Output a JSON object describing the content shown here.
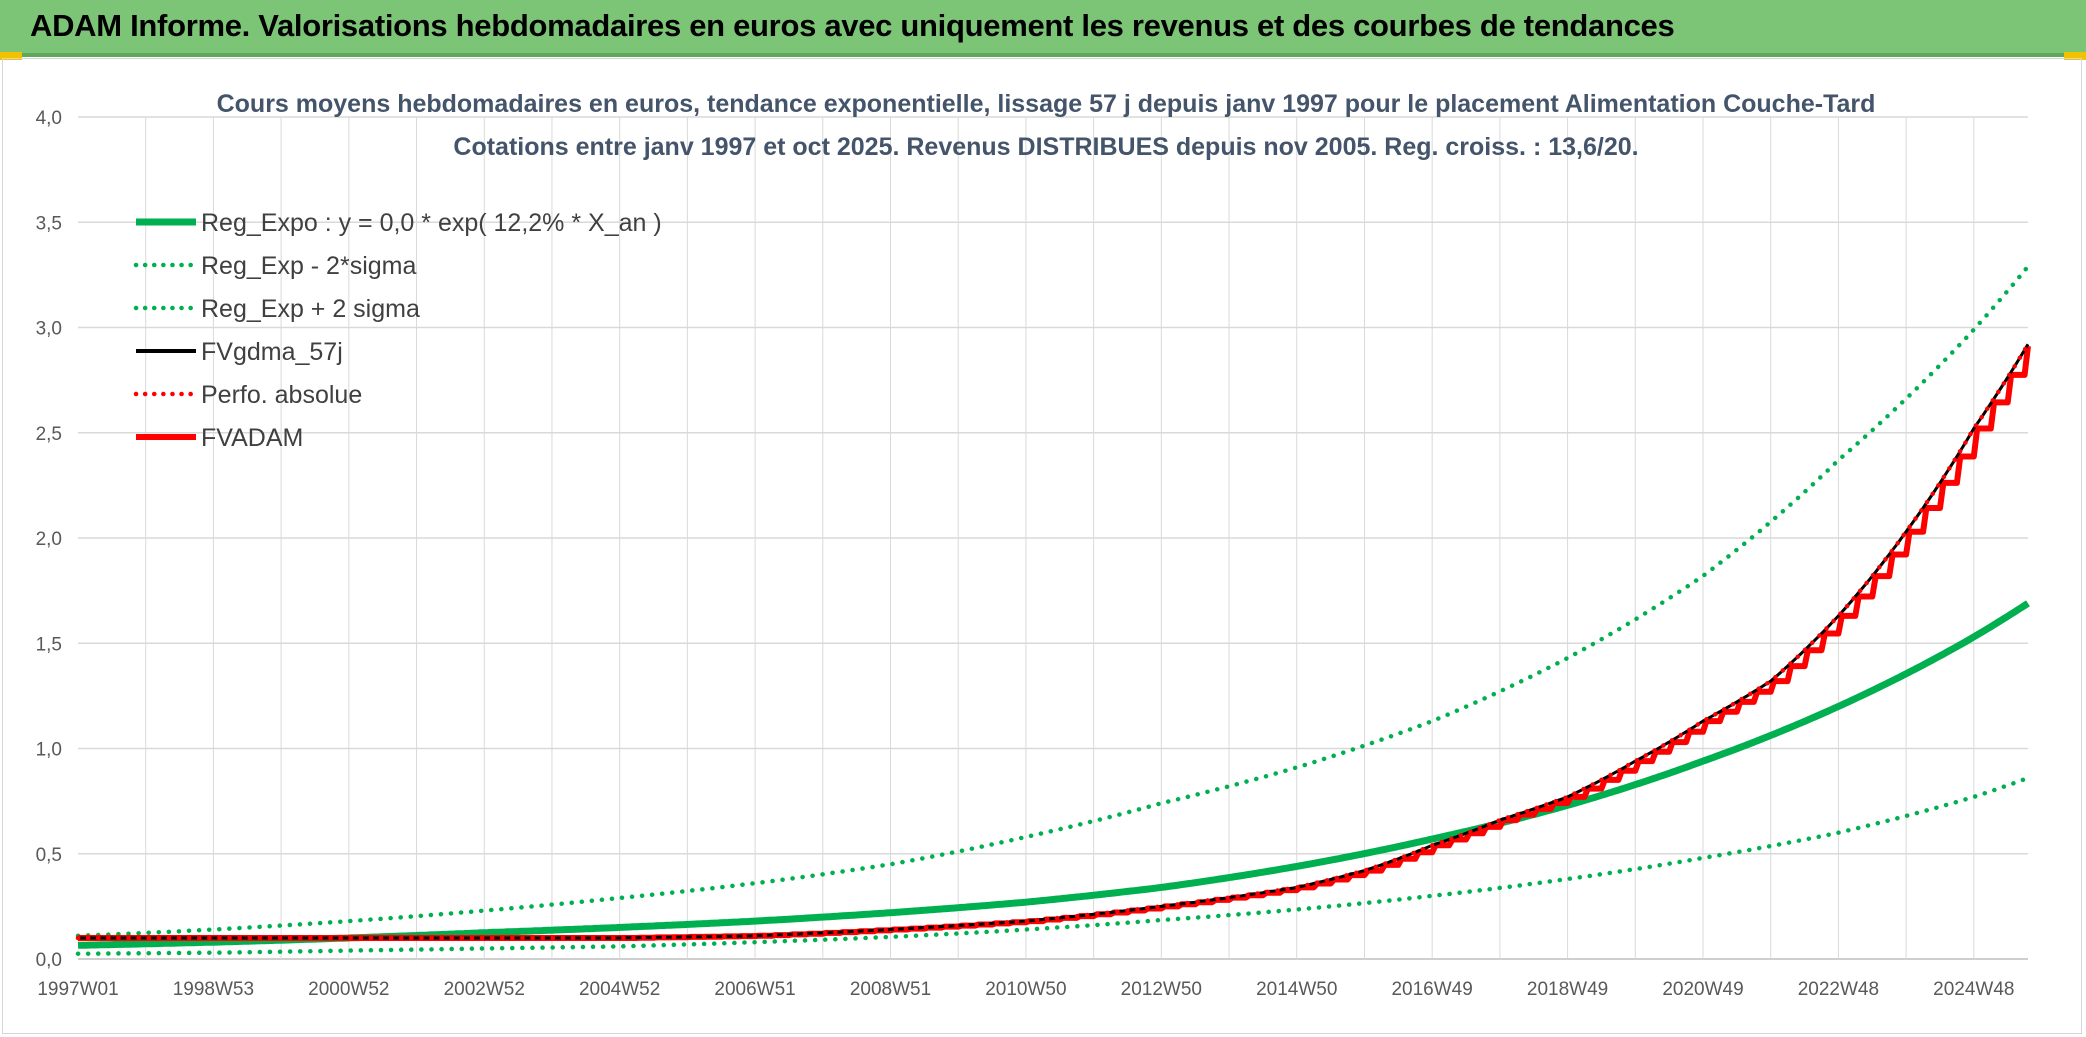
{
  "banner": {
    "title": "ADAM Informe. Valorisations hebdomadaires en euros avec uniquement les revenus et des courbes de tendances"
  },
  "colors": {
    "banner_bg": "#7cc576",
    "accent_corner": "#f2c200",
    "green_series": "#00b050",
    "red_series": "#ff0000",
    "black_series": "#000000",
    "grid": "#d9d9d9",
    "title_text": "#44546a"
  },
  "chart_data": {
    "type": "line",
    "title": "Cours moyens hebdomadaires en euros, tendance exponentielle, lissage 57 j depuis janv 1997 pour le placement Alimentation Couche-Tard",
    "subtitle": "Cotations entre janv 1997 et oct 2025. Revenus DISTRIBUES depuis nov 2005. Reg. croiss. : 13,6/20.",
    "xlabel": "",
    "ylabel": "",
    "ylim": [
      0,
      4
    ],
    "xlim": [
      1997.0,
      2025.8
    ],
    "y_ticks": [
      "0,0",
      "0,5",
      "1,0",
      "1,5",
      "2,0",
      "2,5",
      "3,0",
      "3,5",
      "4,0"
    ],
    "x_ticks": [
      {
        "label": "1997W01",
        "x": 1997.0
      },
      {
        "label": "1998W53",
        "x": 1999.0
      },
      {
        "label": "2000W52",
        "x": 2001.0
      },
      {
        "label": "2002W52",
        "x": 2003.0
      },
      {
        "label": "2004W52",
        "x": 2005.0
      },
      {
        "label": "2006W51",
        "x": 2007.0
      },
      {
        "label": "2008W51",
        "x": 2009.0
      },
      {
        "label": "2010W50",
        "x": 2011.0
      },
      {
        "label": "2012W50",
        "x": 2013.0
      },
      {
        "label": "2014W50",
        "x": 2015.0
      },
      {
        "label": "2016W49",
        "x": 2017.0
      },
      {
        "label": "2018W49",
        "x": 2019.0
      },
      {
        "label": "2020W49",
        "x": 2021.0
      },
      {
        "label": "2022W48",
        "x": 2023.0
      },
      {
        "label": "2024W48",
        "x": 2025.0
      }
    ],
    "legend_position": "top-left",
    "grid": true,
    "series": [
      {
        "name": "Reg_Expo : y = 0,0 * exp( 12,2% *  X_an )",
        "style": "solid-thick",
        "color": "#00b050",
        "x": [
          1997,
          1999,
          2001,
          2003,
          2005,
          2007,
          2009,
          2011,
          2013,
          2015,
          2017,
          2019,
          2021,
          2023,
          2025,
          2025.8
        ],
        "y": [
          0.065,
          0.08,
          0.1,
          0.125,
          0.15,
          0.18,
          0.22,
          0.27,
          0.34,
          0.44,
          0.57,
          0.73,
          0.94,
          1.2,
          1.53,
          1.69
        ]
      },
      {
        "name": "Reg_Exp - 2*sigma",
        "style": "dotted",
        "color": "#00b050",
        "x": [
          1997,
          1999,
          2001,
          2003,
          2005,
          2007,
          2009,
          2011,
          2013,
          2015,
          2017,
          2019,
          2021,
          2023,
          2025,
          2025.8
        ],
        "y": [
          0.025,
          0.03,
          0.04,
          0.05,
          0.06,
          0.08,
          0.105,
          0.14,
          0.185,
          0.235,
          0.3,
          0.38,
          0.48,
          0.6,
          0.77,
          0.86
        ]
      },
      {
        "name": "Reg_Exp + 2 sigma",
        "style": "dotted",
        "color": "#00b050",
        "x": [
          1997,
          1999,
          2001,
          2003,
          2005,
          2007,
          2009,
          2011,
          2013,
          2015,
          2017,
          2019,
          2021,
          2023,
          2025,
          2025.8
        ],
        "y": [
          0.11,
          0.14,
          0.18,
          0.23,
          0.29,
          0.36,
          0.45,
          0.58,
          0.74,
          0.91,
          1.13,
          1.43,
          1.82,
          2.37,
          2.99,
          3.29
        ]
      },
      {
        "name": "FVgdma_57j",
        "style": "solid",
        "color": "#000000",
        "x": [
          1997,
          1999,
          2001,
          2003,
          2005,
          2007,
          2009,
          2011,
          2013,
          2015,
          2016,
          2017,
          2018,
          2019,
          2020,
          2021,
          2022,
          2023,
          2024,
          2025,
          2025.8
        ],
        "y": [
          0.1,
          0.1,
          0.1,
          0.1,
          0.1,
          0.11,
          0.14,
          0.18,
          0.25,
          0.34,
          0.42,
          0.54,
          0.66,
          0.77,
          0.94,
          1.13,
          1.32,
          1.63,
          2.03,
          2.52,
          2.92
        ]
      },
      {
        "name": "Perfo. absolue",
        "style": "dotted",
        "color": "#ff0000",
        "x": [
          1997,
          1999,
          2001,
          2003,
          2005,
          2007,
          2009,
          2011,
          2013,
          2015,
          2016,
          2017,
          2018,
          2019,
          2020,
          2021,
          2022,
          2023,
          2024,
          2025,
          2025.8
        ],
        "y": [
          0.1,
          0.1,
          0.1,
          0.1,
          0.1,
          0.11,
          0.14,
          0.18,
          0.25,
          0.34,
          0.42,
          0.54,
          0.66,
          0.77,
          0.94,
          1.13,
          1.32,
          1.63,
          2.03,
          2.52,
          2.92
        ]
      },
      {
        "name": "FVADAM",
        "style": "solid-thick-stepped",
        "color": "#ff0000",
        "x": [
          1997,
          1999,
          2001,
          2003,
          2005,
          2007,
          2009,
          2011,
          2013,
          2015,
          2016,
          2017,
          2018,
          2019,
          2020,
          2021,
          2022,
          2023,
          2024,
          2025,
          2025.8
        ],
        "y": [
          0.1,
          0.1,
          0.1,
          0.1,
          0.1,
          0.11,
          0.14,
          0.18,
          0.25,
          0.34,
          0.42,
          0.54,
          0.66,
          0.77,
          0.94,
          1.13,
          1.32,
          1.63,
          2.03,
          2.52,
          2.94
        ]
      }
    ]
  }
}
